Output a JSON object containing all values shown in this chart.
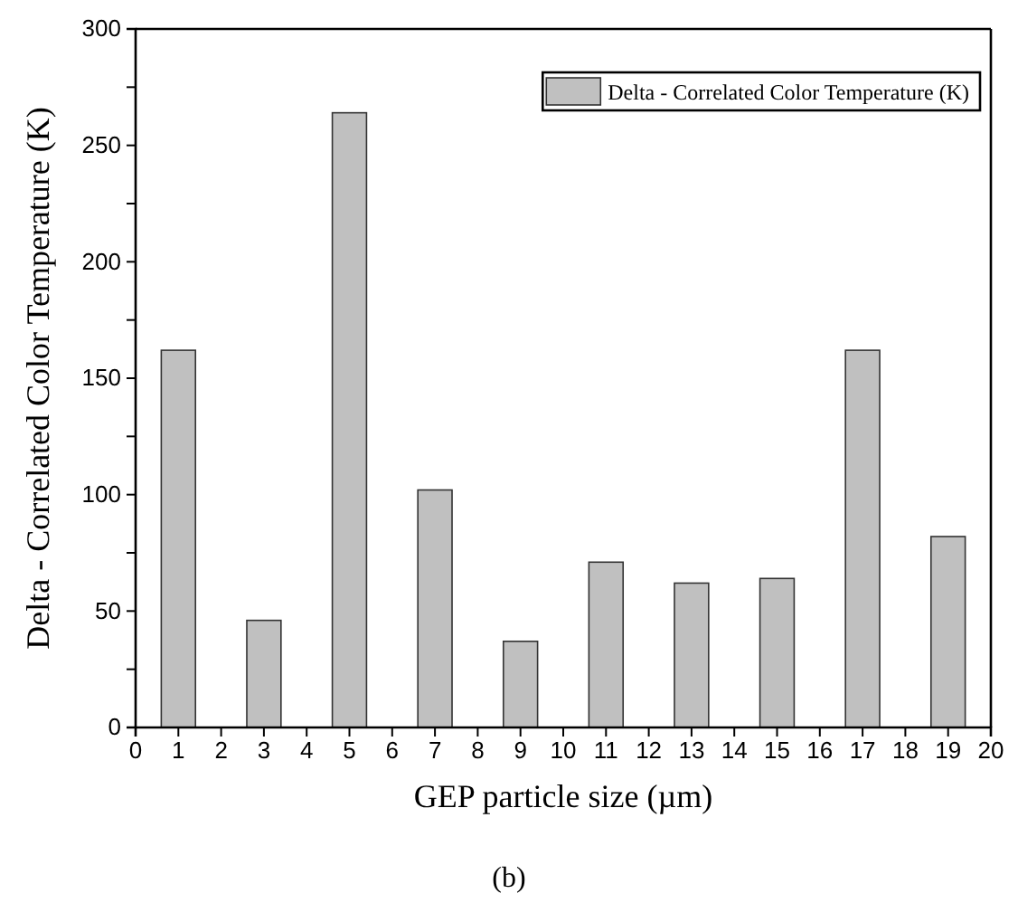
{
  "chart_data": {
    "type": "bar",
    "xlabel": "GEP particle size (µm)",
    "ylabel": "Delta - Correlated Color Temperature (K)",
    "x": [
      1,
      3,
      5,
      7,
      9,
      11,
      13,
      15,
      17,
      19
    ],
    "series": [
      {
        "name": "Delta - Correlated Color Temperature (K)",
        "color": "#c0c0c0",
        "values": [
          162,
          46,
          264,
          102,
          37,
          71,
          62,
          64,
          162,
          82
        ]
      }
    ],
    "xlim": [
      0,
      20
    ],
    "xticks": [
      0,
      1,
      2,
      3,
      4,
      5,
      6,
      7,
      8,
      9,
      10,
      11,
      12,
      13,
      14,
      15,
      16,
      17,
      18,
      19,
      20
    ],
    "ylim": [
      0,
      300
    ],
    "yticks": [
      0,
      {
        "value": 25,
        "label": null
      },
      50,
      {
        "value": 75,
        "label": null
      },
      100,
      {
        "value": 125,
        "label": null
      },
      150,
      {
        "value": 175,
        "label": null
      },
      200,
      {
        "value": 225,
        "label": null
      },
      250,
      {
        "value": 275,
        "label": null
      },
      300
    ],
    "legend": "top right",
    "grid": false,
    "annotations": [
      "(b)"
    ]
  }
}
